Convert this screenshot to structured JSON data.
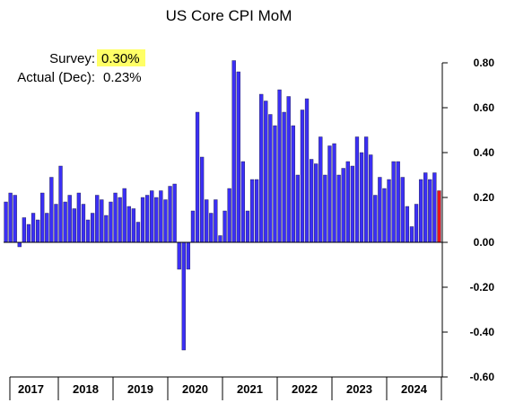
{
  "chart_data": {
    "type": "bar",
    "title": "US Core CPI MoM",
    "annotations": {
      "survey_label": "Survey:",
      "survey_value": "0.30%",
      "actual_label": "Actual (Dec):",
      "actual_value": "0.23%"
    },
    "ylim": [
      -0.6,
      0.8
    ],
    "y_ticks": [
      "0.80",
      "0.60",
      "0.40",
      "0.20",
      "0.00",
      "-0.20",
      "-0.40",
      "-0.60"
    ],
    "y_tick_values": [
      0.8,
      0.6,
      0.4,
      0.2,
      0.0,
      -0.2,
      -0.4,
      -0.6
    ],
    "years": [
      "2017",
      "2018",
      "2019",
      "2020",
      "2021",
      "2022",
      "2023",
      "2024"
    ],
    "x_start": "2017-01",
    "x_end": "2024-12",
    "values": [
      0.18,
      0.22,
      0.21,
      -0.02,
      0.11,
      0.08,
      0.13,
      0.1,
      0.22,
      0.13,
      0.29,
      0.17,
      0.34,
      0.18,
      0.21,
      0.15,
      0.22,
      0.17,
      0.1,
      0.13,
      0.21,
      0.19,
      0.12,
      0.18,
      0.22,
      0.2,
      0.24,
      0.16,
      0.15,
      0.09,
      0.2,
      0.21,
      0.23,
      0.2,
      0.23,
      0.19,
      0.25,
      0.26,
      -0.12,
      -0.48,
      -0.12,
      0.14,
      0.58,
      0.38,
      0.19,
      0.13,
      0.19,
      0.03,
      0.14,
      0.24,
      0.81,
      0.76,
      0.36,
      0.14,
      0.28,
      0.28,
      0.66,
      0.63,
      0.57,
      0.52,
      0.68,
      0.58,
      0.65,
      0.52,
      0.3,
      0.59,
      0.64,
      0.37,
      0.35,
      0.47,
      0.3,
      0.43,
      0.44,
      0.3,
      0.33,
      0.36,
      0.34,
      0.47,
      0.4,
      0.47,
      0.39,
      0.21,
      0.29,
      0.24,
      0.28,
      0.36,
      0.36,
      0.29,
      0.16,
      0.07,
      0.17,
      0.28,
      0.31,
      0.28,
      0.31,
      0.23
    ],
    "colors": {
      "bar": "#3b2ff5",
      "last_bar": "#e8141c",
      "highlight": "#ffff66"
    },
    "grid": false,
    "legend": "none"
  }
}
